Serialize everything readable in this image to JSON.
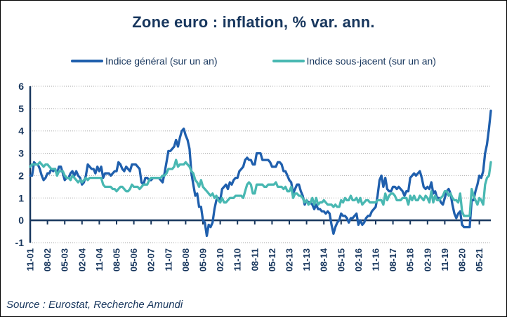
{
  "source_note": "Source : Eurostat, Recherche Amundi",
  "colors": {
    "text_navy": "#17365D",
    "axis_navy": "#17365D",
    "headline_blue": "#1F5FAD",
    "core_teal": "#49B8B2",
    "gridline_grey": "#A6A6A6"
  },
  "chart_data": {
    "type": "line",
    "title": "Zone euro : inflation, % var. ann.",
    "frequency": "monthly",
    "x_start": "2001-11",
    "x_end": "2021-11",
    "x_tick_step": 9,
    "x_tick_labels": [
      "11-01",
      "08-02",
      "05-03",
      "02-04",
      "11-04",
      "08-05",
      "05-06",
      "02-07",
      "11-07",
      "08-08",
      "05-09",
      "02-10",
      "11-10",
      "08-11",
      "05-12",
      "02-13",
      "11-13",
      "08-14",
      "05-15",
      "02-16",
      "11-16",
      "08-17",
      "05-18",
      "02-19",
      "11-19",
      "08-20",
      "05-21"
    ],
    "ylim": [
      -1,
      6
    ],
    "y_ticks": [
      -1,
      0,
      1,
      2,
      3,
      4,
      5,
      6
    ],
    "grid": "horizontal-dotted",
    "legend_position": "top",
    "series": [
      {
        "name": "Indice général (sur un an)",
        "color": "#1F5FAD",
        "values": [
          2.0,
          2.0,
          2.6,
          2.5,
          2.5,
          2.3,
          2.0,
          1.8,
          1.9,
          2.1,
          2.1,
          2.3,
          2.2,
          2.3,
          2.1,
          2.4,
          2.4,
          2.1,
          1.8,
          1.9,
          1.9,
          2.1,
          2.2,
          2.0,
          2.2,
          2.0,
          1.9,
          1.6,
          1.7,
          2.0,
          2.5,
          2.4,
          2.3,
          2.3,
          2.1,
          2.4,
          2.2,
          2.4,
          1.9,
          2.1,
          2.1,
          2.1,
          2.0,
          2.1,
          2.2,
          2.2,
          2.6,
          2.5,
          2.3,
          2.2,
          2.4,
          2.3,
          2.2,
          2.5,
          2.5,
          2.5,
          2.4,
          2.3,
          1.7,
          1.6,
          1.9,
          1.9,
          1.8,
          1.8,
          1.9,
          1.9,
          1.9,
          1.9,
          1.8,
          1.7,
          2.1,
          2.6,
          3.1,
          3.1,
          3.2,
          3.3,
          3.6,
          3.3,
          3.7,
          4.0,
          4.1,
          3.8,
          3.6,
          3.2,
          2.1,
          1.6,
          1.1,
          1.2,
          0.6,
          0.6,
          0.0,
          -0.1,
          -0.7,
          -0.2,
          -0.3,
          -0.1,
          0.5,
          0.9,
          1.0,
          0.9,
          1.4,
          1.5,
          1.6,
          1.4,
          1.7,
          1.6,
          1.8,
          1.9,
          1.9,
          2.2,
          2.3,
          2.4,
          2.7,
          2.8,
          2.7,
          2.7,
          2.5,
          2.5,
          3.0,
          3.0,
          3.0,
          2.7,
          2.7,
          2.7,
          2.7,
          2.6,
          2.4,
          2.4,
          2.4,
          2.6,
          2.6,
          2.5,
          2.2,
          2.2,
          2.0,
          1.8,
          1.7,
          1.2,
          1.4,
          1.6,
          1.6,
          1.3,
          1.1,
          0.7,
          0.9,
          0.8,
          0.8,
          0.7,
          0.5,
          0.7,
          0.5,
          0.5,
          0.4,
          0.4,
          0.3,
          0.4,
          0.3,
          -0.2,
          -0.6,
          -0.3,
          -0.1,
          0.0,
          0.3,
          0.2,
          0.2,
          0.1,
          -0.1,
          0.1,
          0.1,
          0.2,
          0.3,
          -0.2,
          0.0,
          -0.2,
          -0.1,
          0.1,
          0.2,
          0.2,
          0.4,
          0.5,
          0.6,
          1.1,
          1.8,
          2.0,
          1.5,
          1.9,
          1.4,
          1.3,
          1.3,
          1.5,
          1.5,
          1.4,
          1.5,
          1.4,
          1.3,
          1.1,
          1.3,
          1.3,
          1.9,
          2.0,
          2.1,
          2.0,
          2.1,
          2.2,
          1.9,
          1.5,
          1.4,
          1.5,
          1.4,
          1.7,
          1.2,
          1.3,
          1.0,
          1.0,
          0.8,
          0.7,
          1.0,
          1.3,
          1.4,
          1.2,
          0.7,
          0.3,
          0.1,
          0.3,
          0.4,
          -0.2,
          -0.3,
          -0.3,
          -0.3,
          -0.3,
          0.9,
          0.9,
          1.3,
          1.6,
          2.0,
          1.9,
          2.2,
          3.0,
          3.4,
          4.1,
          4.9
        ]
      },
      {
        "name": "Indice sous-jacent (sur un an)",
        "color": "#49B8B2",
        "values": [
          2.4,
          2.5,
          2.5,
          2.5,
          2.5,
          2.6,
          2.5,
          2.4,
          2.5,
          2.5,
          2.4,
          2.3,
          2.3,
          2.3,
          2.0,
          2.2,
          2.2,
          2.2,
          2.0,
          1.9,
          1.9,
          1.8,
          2.0,
          1.9,
          1.8,
          1.7,
          1.8,
          1.7,
          1.8,
          1.9,
          1.8,
          1.9,
          1.9,
          1.9,
          1.9,
          1.9,
          1.9,
          1.9,
          1.6,
          1.5,
          1.5,
          1.5,
          1.5,
          1.4,
          1.4,
          1.3,
          1.4,
          1.5,
          1.5,
          1.4,
          1.3,
          1.3,
          1.4,
          1.6,
          1.5,
          1.5,
          1.5,
          1.4,
          1.5,
          1.6,
          1.6,
          1.6,
          1.8,
          1.9,
          1.9,
          1.9,
          1.9,
          1.9,
          1.9,
          2.0,
          2.0,
          2.1,
          2.3,
          2.3,
          2.3,
          2.4,
          2.7,
          2.4,
          2.5,
          2.5,
          2.5,
          2.6,
          2.5,
          2.4,
          2.2,
          2.1,
          1.8,
          1.7,
          1.5,
          1.8,
          1.5,
          1.4,
          1.3,
          1.2,
          1.1,
          1.2,
          1.0,
          1.1,
          0.9,
          0.8,
          1.0,
          0.8,
          0.8,
          0.9,
          1.0,
          1.0,
          1.0,
          1.1,
          1.1,
          1.1,
          1.1,
          1.0,
          1.3,
          1.6,
          1.7,
          1.6,
          1.2,
          1.2,
          1.6,
          1.6,
          1.6,
          1.6,
          1.5,
          1.5,
          1.6,
          1.6,
          1.6,
          1.6,
          1.7,
          1.5,
          1.5,
          1.5,
          1.4,
          1.5,
          1.3,
          1.3,
          1.5,
          1.0,
          1.2,
          1.2,
          1.1,
          1.1,
          1.0,
          0.8,
          0.9,
          0.7,
          0.8,
          1.0,
          0.7,
          1.0,
          0.7,
          0.8,
          0.8,
          0.9,
          0.8,
          0.7,
          0.7,
          0.7,
          0.6,
          0.7,
          0.6,
          0.6,
          0.9,
          0.8,
          1.0,
          0.9,
          0.9,
          1.1,
          0.9,
          0.9,
          1.0,
          0.8,
          1.0,
          0.7,
          0.8,
          0.9,
          0.9,
          0.8,
          0.8,
          0.8,
          0.8,
          0.9,
          0.9,
          0.9,
          0.7,
          1.2,
          0.9,
          1.1,
          1.2,
          1.2,
          1.1,
          0.9,
          0.9,
          0.9,
          1.0,
          1.0,
          1.0,
          0.7,
          1.1,
          0.9,
          1.1,
          0.9,
          0.9,
          1.1,
          1.0,
          0.9,
          1.1,
          1.0,
          0.8,
          1.3,
          0.8,
          1.1,
          0.9,
          0.9,
          1.0,
          1.1,
          1.3,
          1.3,
          1.1,
          1.2,
          1.0,
          0.9,
          0.9,
          0.8,
          1.2,
          0.4,
          0.2,
          0.2,
          0.2,
          0.2,
          1.4,
          1.1,
          0.9,
          0.7,
          1.0,
          0.9,
          0.7,
          1.6,
          1.9,
          2.0,
          2.6
        ]
      }
    ]
  }
}
